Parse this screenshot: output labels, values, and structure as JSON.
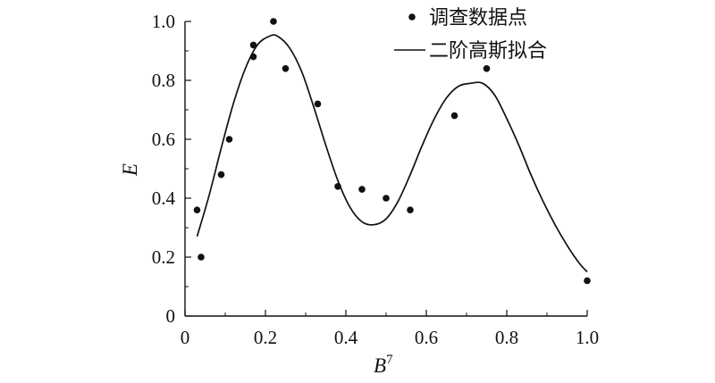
{
  "chart_data": {
    "type": "scatter",
    "xlabel": "B",
    "xlabel_superscript": "7",
    "ylabel": "E",
    "xlim": [
      0,
      1.0
    ],
    "ylim": [
      0,
      1.0
    ],
    "xticks": [
      "0",
      "0.2",
      "0.4",
      "0.6",
      "0.8",
      "1.0"
    ],
    "yticks": [
      "0",
      "0.2",
      "0.4",
      "0.6",
      "0.8",
      "1.0"
    ],
    "legend_position": "top-right",
    "grid": false,
    "series": [
      {
        "name": "调查数据点",
        "kind": "scatter",
        "color": "#111111",
        "points": [
          [
            0.03,
            0.36
          ],
          [
            0.04,
            0.2
          ],
          [
            0.09,
            0.48
          ],
          [
            0.11,
            0.6
          ],
          [
            0.17,
            0.92
          ],
          [
            0.17,
            0.88
          ],
          [
            0.22,
            1.0
          ],
          [
            0.25,
            0.84
          ],
          [
            0.33,
            0.72
          ],
          [
            0.38,
            0.44
          ],
          [
            0.44,
            0.43
          ],
          [
            0.5,
            0.4
          ],
          [
            0.56,
            0.36
          ],
          [
            0.67,
            0.68
          ],
          [
            0.75,
            0.84
          ],
          [
            1.0,
            0.12
          ]
        ]
      },
      {
        "name": "二阶高斯拟合",
        "kind": "line",
        "color": "#111111",
        "points": [
          [
            0.03,
            0.27
          ],
          [
            0.06,
            0.41
          ],
          [
            0.09,
            0.57
          ],
          [
            0.12,
            0.72
          ],
          [
            0.15,
            0.84
          ],
          [
            0.18,
            0.92
          ],
          [
            0.21,
            0.95
          ],
          [
            0.23,
            0.95
          ],
          [
            0.26,
            0.91
          ],
          [
            0.29,
            0.83
          ],
          [
            0.32,
            0.71
          ],
          [
            0.35,
            0.58
          ],
          [
            0.38,
            0.46
          ],
          [
            0.41,
            0.37
          ],
          [
            0.44,
            0.32
          ],
          [
            0.47,
            0.31
          ],
          [
            0.5,
            0.33
          ],
          [
            0.53,
            0.39
          ],
          [
            0.56,
            0.48
          ],
          [
            0.59,
            0.58
          ],
          [
            0.62,
            0.67
          ],
          [
            0.65,
            0.74
          ],
          [
            0.68,
            0.78
          ],
          [
            0.71,
            0.79
          ],
          [
            0.74,
            0.79
          ],
          [
            0.77,
            0.75
          ],
          [
            0.8,
            0.67
          ],
          [
            0.83,
            0.58
          ],
          [
            0.86,
            0.48
          ],
          [
            0.89,
            0.39
          ],
          [
            0.92,
            0.31
          ],
          [
            0.95,
            0.24
          ],
          [
            0.98,
            0.18
          ],
          [
            1.0,
            0.15
          ]
        ]
      }
    ]
  }
}
